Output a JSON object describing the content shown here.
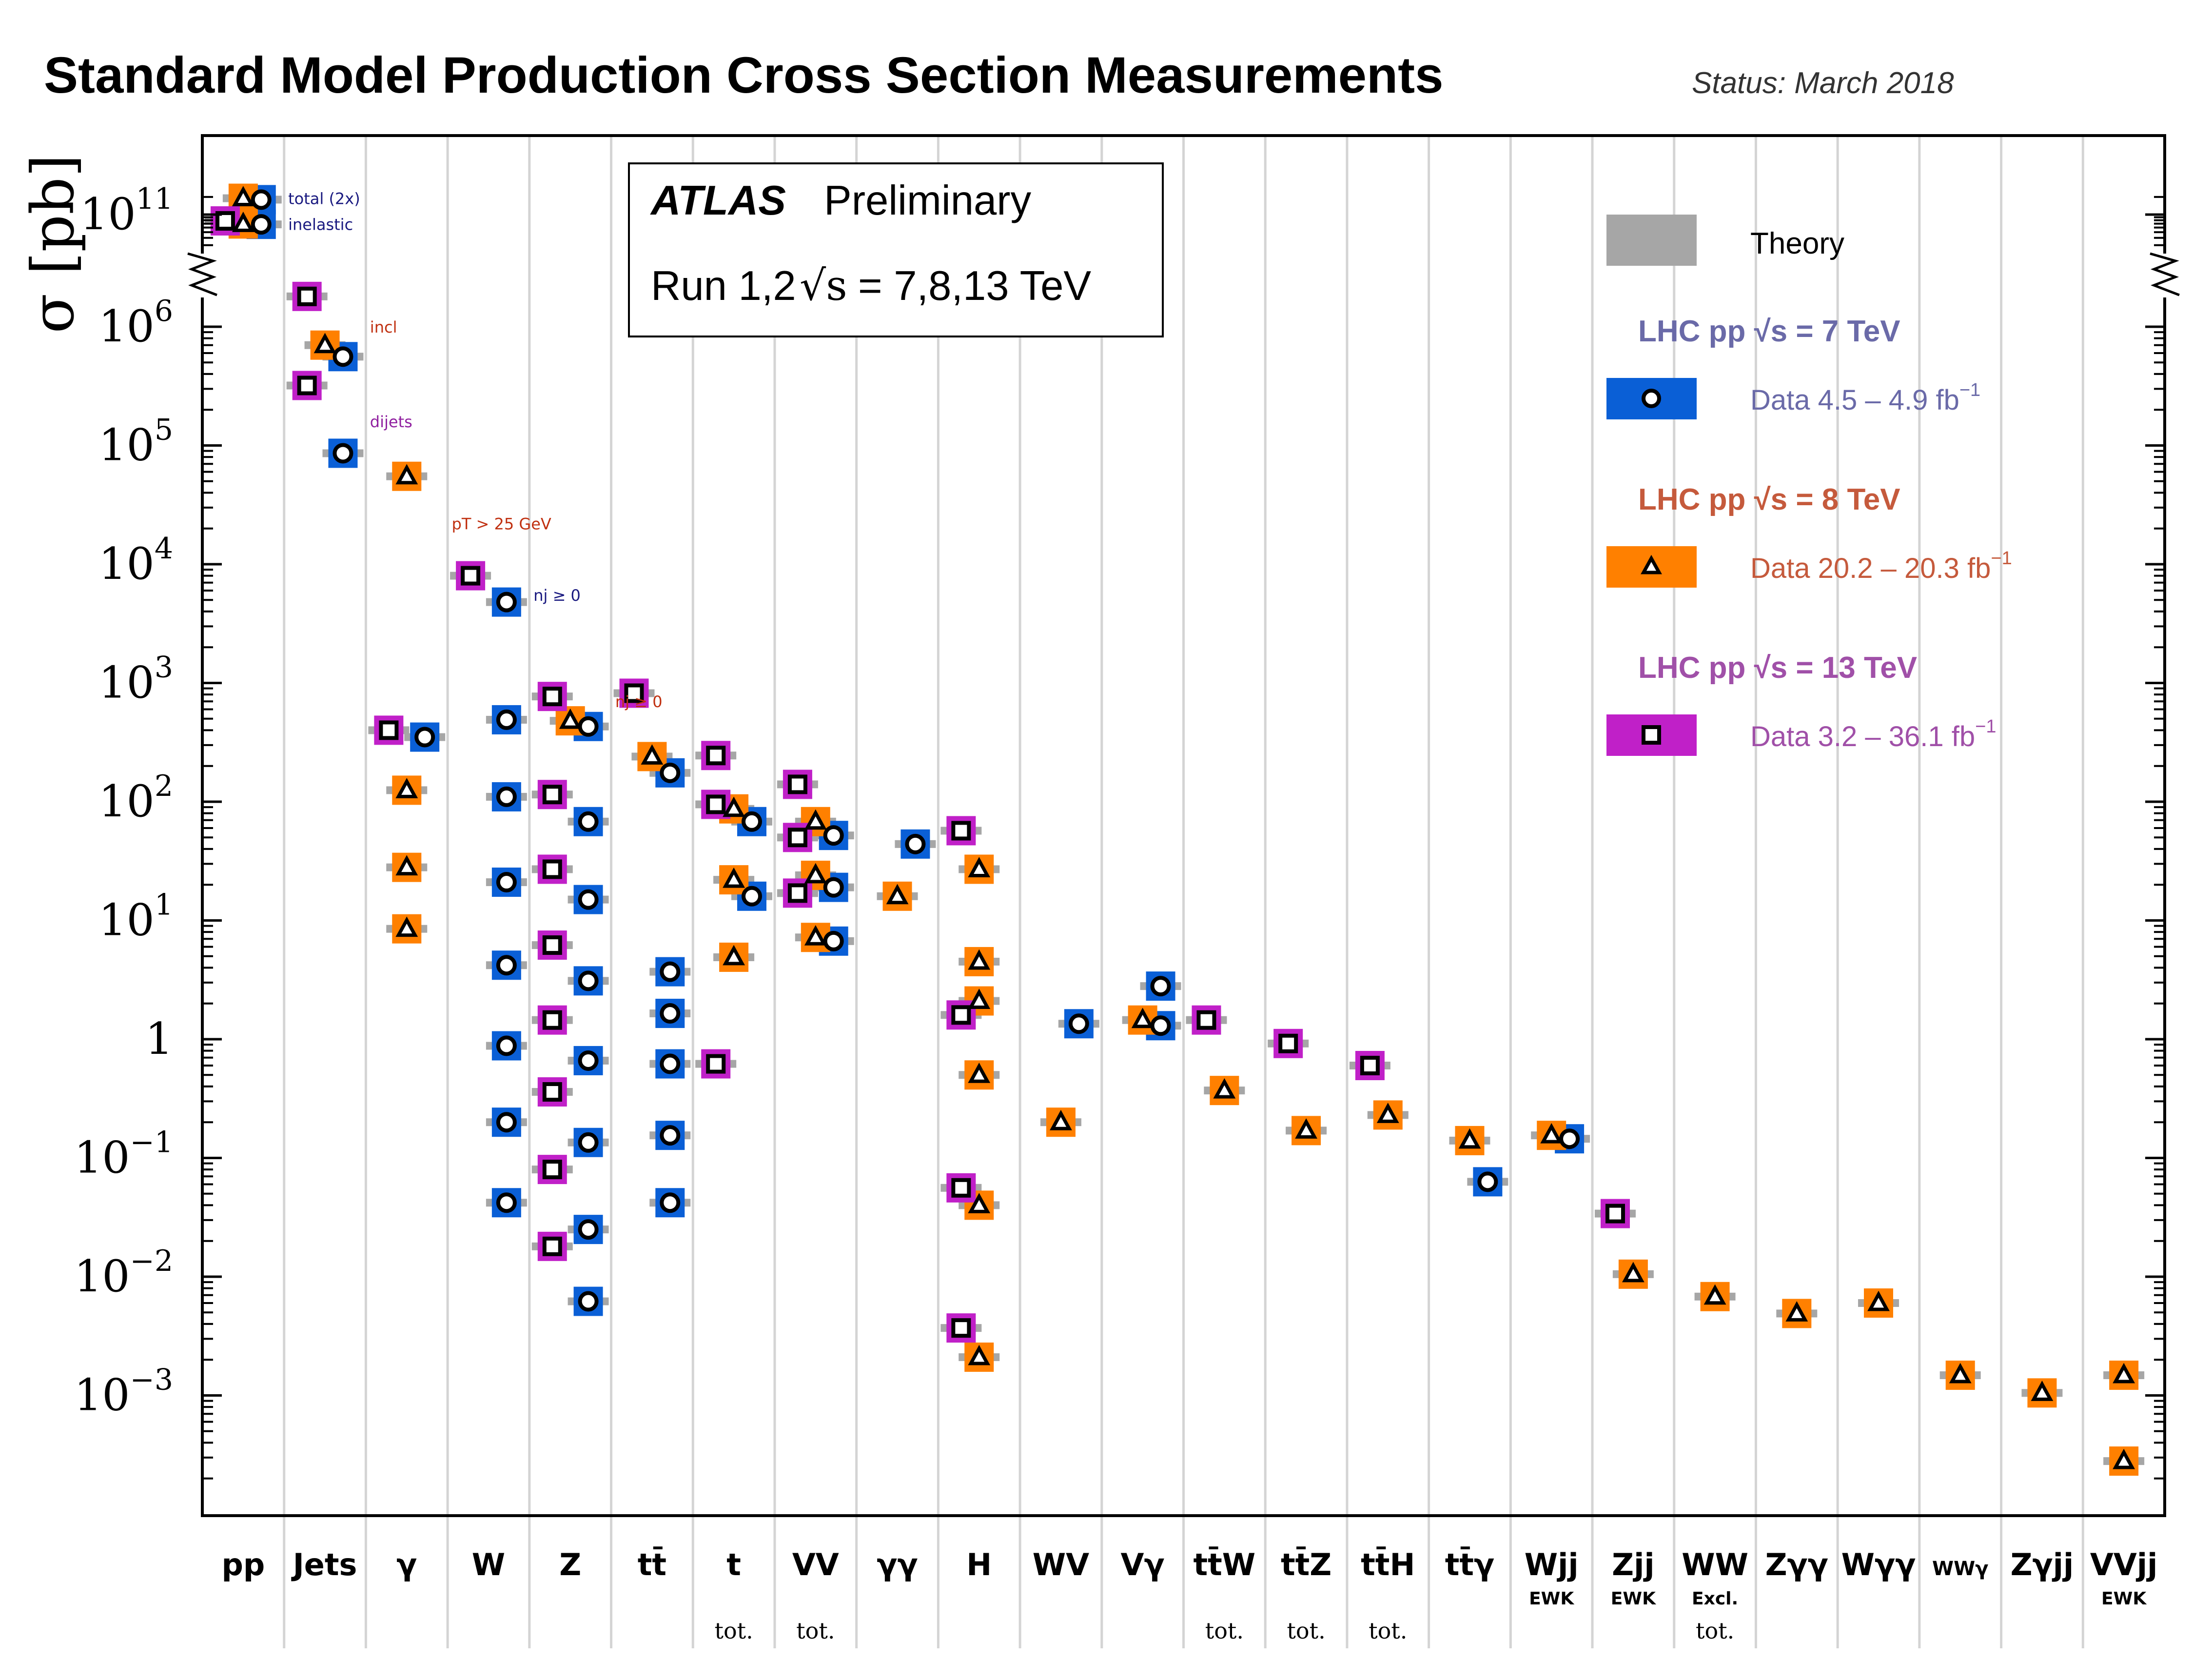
{
  "title": "Standard Model Production Cross Section Measurements",
  "status": "Status: March 2018",
  "chart_data": {
    "type": "scatter",
    "yscale": "log",
    "ylabel": "σ [pb]",
    "ylim": [
      5e-05,
      300000000000.0
    ],
    "y_ticks": [
      {
        "v": 100000000000.0,
        "label": "10",
        "exp": "11"
      },
      {
        "v": 1000000.0,
        "label": "10",
        "exp": "6"
      },
      {
        "v": 100000.0,
        "label": "10",
        "exp": "5"
      },
      {
        "v": 10000.0,
        "label": "10",
        "exp": "4"
      },
      {
        "v": 1000.0,
        "label": "10",
        "exp": "3"
      },
      {
        "v": 100.0,
        "label": "10",
        "exp": "2"
      },
      {
        "v": 10,
        "label": "10",
        "exp": "1"
      },
      {
        "v": 1,
        "label": "1",
        "exp": ""
      },
      {
        "v": 0.1,
        "label": "10",
        "exp": "−1"
      },
      {
        "v": 0.01,
        "label": "10",
        "exp": "−2"
      },
      {
        "v": 0.001,
        "label": "10",
        "exp": "−3"
      }
    ],
    "categories": [
      "pp",
      "Jets",
      "γ",
      "W",
      "Z",
      "tt̄",
      "t",
      "VV",
      "γγ",
      "H",
      "WV",
      "Vγ",
      "tt̄W",
      "tt̄Z",
      "tt̄H",
      "tt̄γ",
      "Wjj",
      "Zjj",
      "WW",
      "Zγγ",
      "Wγγ",
      "WWγ",
      "Zγjj",
      "VVjj"
    ],
    "category_sublabels": {
      "Wjj": "EWK",
      "Zjj": "EWK",
      "WW": "Excl.",
      "VVjj": "EWK"
    },
    "total_labels": {
      "t": "tot.",
      "VV": "tot.",
      "tt̄W": "tot.",
      "tt̄Z": "tot.",
      "tt̄H": "tot.",
      "WW": "tot."
    },
    "legend": {
      "box_title": "ATLAS",
      "box_subtitle": "Preliminary",
      "box_run": "Run 1,2",
      "box_energy": "= 7,8,13 TeV",
      "theory": "Theory",
      "entries": [
        {
          "energy": "7",
          "header": "LHC pp",
          "header_tail": "= 7 TeV",
          "data": "Data  4.5 – 4.9 fb",
          "marker": "circle",
          "color": "#0a5fd6",
          "text_color": "#6a6aa8"
        },
        {
          "energy": "8",
          "header": "LHC pp",
          "header_tail": "= 8 TeV",
          "data": "Data  20.2 – 20.3 fb",
          "marker": "triangle",
          "color": "#ff8000",
          "text_color": "#c55a3c"
        },
        {
          "energy": "13",
          "header": "LHC pp",
          "header_tail": "= 13 TeV",
          "data": "Data  3.2 – 36.1 fb",
          "marker": "square",
          "color": "#c020c8",
          "text_color": "#a050a8"
        }
      ]
    },
    "series": [
      {
        "name": "LHC pp √s = 7 TeV",
        "marker": "circle",
        "points": [
          {
            "cat": "pp",
            "y": 180000000000.0
          },
          {
            "cat": "pp",
            "y": 68000000000.0
          },
          {
            "cat": "Jets",
            "y": 560000
          },
          {
            "cat": "Jets",
            "y": 86000
          },
          {
            "cat": "γ",
            "y": 350
          },
          {
            "cat": "W",
            "y": 4800
          },
          {
            "cat": "W",
            "y": 490
          },
          {
            "cat": "W",
            "y": 110
          },
          {
            "cat": "W",
            "y": 21
          },
          {
            "cat": "W",
            "y": 4.2
          },
          {
            "cat": "W",
            "y": 0.88
          },
          {
            "cat": "W",
            "y": 0.2
          },
          {
            "cat": "W",
            "y": 0.042
          },
          {
            "cat": "Z",
            "y": 430
          },
          {
            "cat": "Z",
            "y": 68
          },
          {
            "cat": "Z",
            "y": 15
          },
          {
            "cat": "Z",
            "y": 3.1
          },
          {
            "cat": "Z",
            "y": 0.66
          },
          {
            "cat": "Z",
            "y": 0.135
          },
          {
            "cat": "Z",
            "y": 0.025
          },
          {
            "cat": "Z",
            "y": 0.0062
          },
          {
            "cat": "tt̄",
            "y": 175
          },
          {
            "cat": "tt̄",
            "y": 3.7
          },
          {
            "cat": "tt̄",
            "y": 1.65
          },
          {
            "cat": "tt̄",
            "y": 0.62
          },
          {
            "cat": "tt̄",
            "y": 0.155
          },
          {
            "cat": "tt̄",
            "y": 0.042
          },
          {
            "cat": "t",
            "y": 68
          },
          {
            "cat": "t",
            "y": 16
          },
          {
            "cat": "VV",
            "y": 52
          },
          {
            "cat": "VV",
            "y": 19
          },
          {
            "cat": "VV",
            "y": 6.7
          },
          {
            "cat": "γγ",
            "y": 44
          },
          {
            "cat": "WV",
            "y": 1.35
          },
          {
            "cat": "Vγ",
            "y": 2.8
          },
          {
            "cat": "Vγ",
            "y": 1.3
          },
          {
            "cat": "tt̄γ",
            "y": 0.063
          },
          {
            "cat": "Wjj",
            "y": 0.145
          }
        ]
      },
      {
        "name": "LHC pp √s = 8 TeV",
        "marker": "triangle",
        "points": [
          {
            "cat": "pp",
            "y": 190000000000.0
          },
          {
            "cat": "pp",
            "y": 69000000000.0
          },
          {
            "cat": "Jets",
            "y": 700000
          },
          {
            "cat": "γ",
            "y": 55000
          },
          {
            "cat": "γ",
            "y": 125
          },
          {
            "cat": "γ",
            "y": 28
          },
          {
            "cat": "γ",
            "y": 8.5
          },
          {
            "cat": "Z",
            "y": 480
          },
          {
            "cat": "tt̄",
            "y": 240
          },
          {
            "cat": "t",
            "y": 87
          },
          {
            "cat": "t",
            "y": 22
          },
          {
            "cat": "t",
            "y": 4.9
          },
          {
            "cat": "VV",
            "y": 68
          },
          {
            "cat": "VV",
            "y": 24
          },
          {
            "cat": "VV",
            "y": 7.2
          },
          {
            "cat": "γγ",
            "y": 16
          },
          {
            "cat": "H",
            "y": 27
          },
          {
            "cat": "H",
            "y": 4.5
          },
          {
            "cat": "H",
            "y": 2.1
          },
          {
            "cat": "H",
            "y": 0.5
          },
          {
            "cat": "H",
            "y": 0.04
          },
          {
            "cat": "H",
            "y": 0.0021
          },
          {
            "cat": "WV",
            "y": 0.2
          },
          {
            "cat": "Vγ",
            "y": 1.45
          },
          {
            "cat": "tt̄W",
            "y": 0.37
          },
          {
            "cat": "tt̄Z",
            "y": 0.17
          },
          {
            "cat": "tt̄H",
            "y": 0.23
          },
          {
            "cat": "tt̄γ",
            "y": 0.14
          },
          {
            "cat": "Wjj",
            "y": 0.155
          },
          {
            "cat": "Zjj",
            "y": 0.0105
          },
          {
            "cat": "WW",
            "y": 0.0068
          },
          {
            "cat": "Zγγ",
            "y": 0.0049
          },
          {
            "cat": "Wγγ",
            "y": 0.006
          },
          {
            "cat": "WWγ",
            "y": 0.00148
          },
          {
            "cat": "Zγjj",
            "y": 0.00105
          },
          {
            "cat": "VVjj",
            "y": 0.00148
          },
          {
            "cat": "VVjj",
            "y": 0.00028
          }
        ]
      },
      {
        "name": "LHC pp √s = 13 TeV",
        "marker": "square",
        "points": [
          {
            "cat": "pp",
            "y": 78000000000.0
          },
          {
            "cat": "Jets",
            "y": 1800000.0
          },
          {
            "cat": "Jets",
            "y": 320000
          },
          {
            "cat": "γ",
            "y": 400
          },
          {
            "cat": "W",
            "y": 8000
          },
          {
            "cat": "Z",
            "y": 770
          },
          {
            "cat": "Z",
            "y": 115
          },
          {
            "cat": "Z",
            "y": 27
          },
          {
            "cat": "Z",
            "y": 6.2
          },
          {
            "cat": "Z",
            "y": 1.45
          },
          {
            "cat": "Z",
            "y": 0.36
          },
          {
            "cat": "Z",
            "y": 0.08
          },
          {
            "cat": "Z",
            "y": 0.018
          },
          {
            "cat": "tt̄",
            "y": 820
          },
          {
            "cat": "t",
            "y": 245
          },
          {
            "cat": "t",
            "y": 95
          },
          {
            "cat": "t",
            "y": 0.62
          },
          {
            "cat": "VV",
            "y": 140
          },
          {
            "cat": "VV",
            "y": 50
          },
          {
            "cat": "VV",
            "y": 17
          },
          {
            "cat": "H",
            "y": 57
          },
          {
            "cat": "H",
            "y": 1.6
          },
          {
            "cat": "H",
            "y": 0.056
          },
          {
            "cat": "H",
            "y": 0.0037
          },
          {
            "cat": "tt̄W",
            "y": 1.45
          },
          {
            "cat": "tt̄Z",
            "y": 0.92
          },
          {
            "cat": "tt̄H",
            "y": 0.6
          },
          {
            "cat": "Zjj",
            "y": 0.034
          }
        ]
      }
    ],
    "annotations": [
      {
        "cat": "pp",
        "y": 190000000000.0,
        "text": "total (2x)",
        "color": "#1a1a80"
      },
      {
        "cat": "pp",
        "y": 69000000000.0,
        "text": "inelastic",
        "color": "#1a1a80"
      },
      {
        "cat": "Jets",
        "y": 1000000.0,
        "text": "incl",
        "color": "#c03010"
      },
      {
        "cat": "Jets",
        "y": 160000,
        "text": "dijets",
        "color": "#9020a0"
      },
      {
        "cat": "γ",
        "y": 22000,
        "text": "pT > 25 GeV",
        "color": "#c03010"
      },
      {
        "cat": "W",
        "y": 5500,
        "text": "nj ≥ 0",
        "color": "#1a1a80"
      },
      {
        "cat": "Z",
        "y": 700,
        "text": "nj ≥ 0",
        "color": "#c03010"
      }
    ]
  }
}
